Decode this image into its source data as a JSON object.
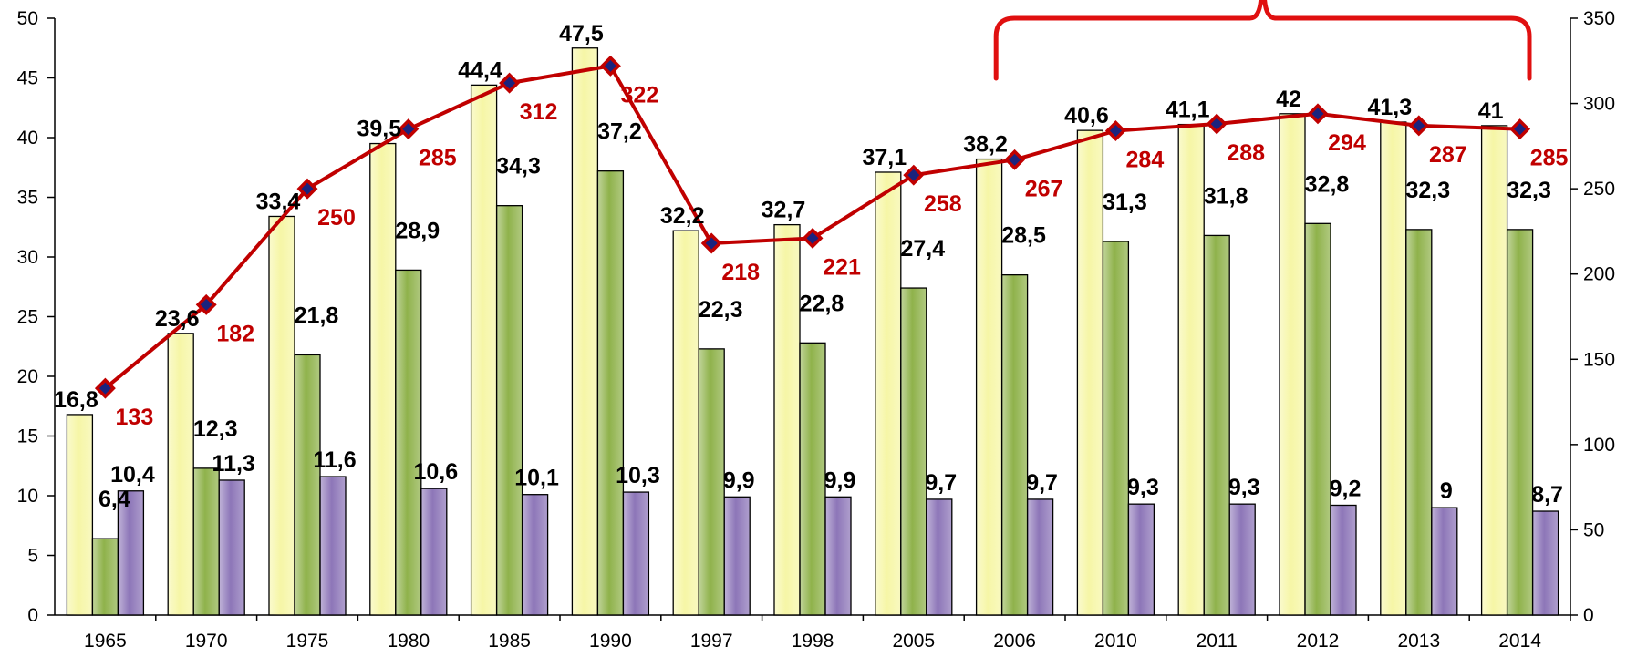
{
  "chart_data": {
    "type": "bar",
    "categories": [
      "1965",
      "1970",
      "1975",
      "1980",
      "1985",
      "1990",
      "1997",
      "1998",
      "2005",
      "2006",
      "2010",
      "2011",
      "2012",
      "2013",
      "2014"
    ],
    "series": [
      {
        "axis": "left",
        "color": "#f6f6a6",
        "values": [
          16.8,
          23.6,
          33.4,
          39.5,
          44.4,
          47.5,
          32.2,
          32.7,
          37.1,
          38.2,
          40.6,
          41.1,
          42,
          41.3,
          41
        ],
        "labels": [
          "16,8",
          "23,6",
          "33,4",
          "39,5",
          "44,4",
          "47,5",
          "32,2",
          "32,7",
          "37,1",
          "38,2",
          "40,6",
          "41,1",
          "42",
          "41,3",
          "41"
        ]
      },
      {
        "axis": "left",
        "color": "#8fb24b",
        "values": [
          6.4,
          12.3,
          21.8,
          28.9,
          34.3,
          37.2,
          22.3,
          22.8,
          27.4,
          28.5,
          31.3,
          31.8,
          32.8,
          32.3,
          32.3
        ],
        "labels": [
          "6,4",
          "12,3",
          "21,8",
          "28,9",
          "34,3",
          "37,2",
          "22,3",
          "22,8",
          "27,4",
          "28,5",
          "31,3",
          "31,8",
          "32,8",
          "32,3",
          "32,3"
        ]
      },
      {
        "axis": "left",
        "color": "#8d76b8",
        "values": [
          10.4,
          11.3,
          11.6,
          10.6,
          10.1,
          10.3,
          9.9,
          9.9,
          9.7,
          9.7,
          9.3,
          9.3,
          9.2,
          9,
          8.7
        ],
        "labels": [
          "10,4",
          "11,3",
          "11,6",
          "10,6",
          "10,1",
          "10,3",
          "9,9",
          "9,9",
          "9,7",
          "9,7",
          "9,3",
          "9,3",
          "9,2",
          "9",
          "8,7"
        ]
      },
      {
        "type": "line",
        "axis": "right",
        "color": "#c00000",
        "values": [
          133,
          182,
          250,
          285,
          312,
          322,
          218,
          221,
          258,
          267,
          284,
          288,
          294,
          287,
          285
        ],
        "labels": [
          "133",
          "182",
          "250",
          "285",
          "312",
          "322",
          "218",
          "221",
          "258",
          "267",
          "284",
          "288",
          "294",
          "287",
          "285"
        ]
      }
    ],
    "y_left": {
      "min": 0,
      "max": 50,
      "step": 5,
      "ticks": [
        "0",
        "5",
        "10",
        "15",
        "20",
        "25",
        "30",
        "35",
        "40",
        "45",
        "50"
      ]
    },
    "y_right": {
      "min": 0,
      "max": 350,
      "step": 50,
      "ticks": [
        "0",
        "50",
        "100",
        "150",
        "200",
        "250",
        "300",
        "350"
      ]
    },
    "grid": false,
    "legend": "none",
    "annotation": {
      "shape": "brace",
      "color": "#e01010",
      "from": "2006",
      "to": "2014"
    }
  }
}
